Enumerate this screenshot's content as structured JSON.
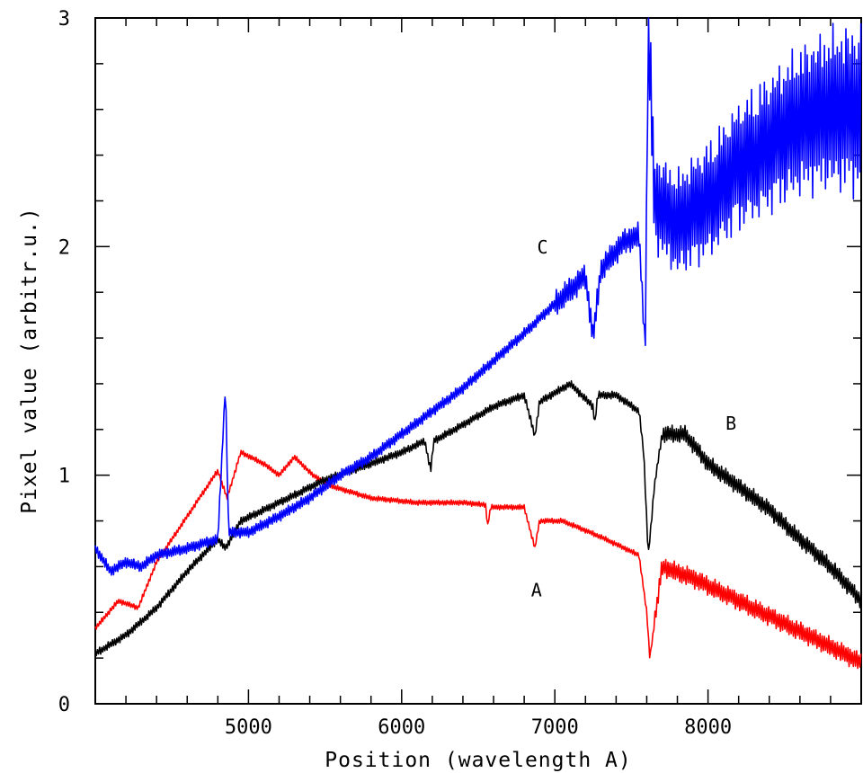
{
  "chart_data": {
    "type": "line",
    "title": "",
    "xlabel": "Position (wavelength A)",
    "ylabel": "Pixel value (arbitr.u.)",
    "xlim": [
      4000,
      9000
    ],
    "ylim": [
      0,
      3
    ],
    "x_tick_labels": [
      "5000",
      "6000",
      "7000",
      "8000"
    ],
    "y_tick_labels": [
      "0",
      "1",
      "2",
      "3"
    ],
    "grid": false,
    "series": [
      {
        "name": "A",
        "color": "#ff0000",
        "points": [
          [
            4000,
            0.33
          ],
          [
            4150,
            0.45
          ],
          [
            4280,
            0.42
          ],
          [
            4400,
            0.62
          ],
          [
            4600,
            0.82
          ],
          [
            4800,
            1.02
          ],
          [
            4860,
            0.9
          ],
          [
            4950,
            1.1
          ],
          [
            5100,
            1.05
          ],
          [
            5200,
            1.0
          ],
          [
            5300,
            1.08
          ],
          [
            5420,
            1.0
          ],
          [
            5550,
            0.95
          ],
          [
            5800,
            0.9
          ],
          [
            6100,
            0.88
          ],
          [
            6400,
            0.88
          ],
          [
            6550,
            0.87
          ],
          [
            6560,
            0.77
          ],
          [
            6580,
            0.86
          ],
          [
            6800,
            0.86
          ],
          [
            6870,
            0.68
          ],
          [
            6900,
            0.8
          ],
          [
            7050,
            0.8
          ],
          [
            7300,
            0.73
          ],
          [
            7550,
            0.65
          ],
          [
            7600,
            0.4
          ],
          [
            7620,
            0.2
          ],
          [
            7700,
            0.6
          ],
          [
            7900,
            0.55
          ],
          [
            8200,
            0.45
          ],
          [
            8500,
            0.35
          ],
          [
            8800,
            0.25
          ],
          [
            9000,
            0.18
          ]
        ]
      },
      {
        "name": "B",
        "color": "#000000",
        "points": [
          [
            4000,
            0.22
          ],
          [
            4200,
            0.3
          ],
          [
            4400,
            0.42
          ],
          [
            4600,
            0.58
          ],
          [
            4800,
            0.72
          ],
          [
            4850,
            0.68
          ],
          [
            4950,
            0.8
          ],
          [
            5200,
            0.88
          ],
          [
            5500,
            0.98
          ],
          [
            5800,
            1.05
          ],
          [
            6000,
            1.1
          ],
          [
            6150,
            1.15
          ],
          [
            6190,
            1.02
          ],
          [
            6210,
            1.15
          ],
          [
            6400,
            1.22
          ],
          [
            6600,
            1.3
          ],
          [
            6800,
            1.35
          ],
          [
            6870,
            1.17
          ],
          [
            6900,
            1.32
          ],
          [
            7100,
            1.4
          ],
          [
            7250,
            1.3
          ],
          [
            7260,
            1.22
          ],
          [
            7280,
            1.35
          ],
          [
            7400,
            1.35
          ],
          [
            7550,
            1.28
          ],
          [
            7580,
            1.1
          ],
          [
            7610,
            0.65
          ],
          [
            7650,
            0.95
          ],
          [
            7700,
            1.18
          ],
          [
            7850,
            1.18
          ],
          [
            8000,
            1.05
          ],
          [
            8200,
            0.95
          ],
          [
            8400,
            0.85
          ],
          [
            8600,
            0.72
          ],
          [
            8800,
            0.6
          ],
          [
            9000,
            0.45
          ]
        ]
      },
      {
        "name": "C",
        "color": "#0000ff",
        "points": [
          [
            4000,
            0.68
          ],
          [
            4100,
            0.58
          ],
          [
            4200,
            0.62
          ],
          [
            4300,
            0.6
          ],
          [
            4400,
            0.65
          ],
          [
            4600,
            0.68
          ],
          [
            4800,
            0.72
          ],
          [
            4850,
            1.4
          ],
          [
            4870,
            0.75
          ],
          [
            5000,
            0.75
          ],
          [
            5200,
            0.82
          ],
          [
            5400,
            0.9
          ],
          [
            5600,
            1.0
          ],
          [
            5800,
            1.08
          ],
          [
            6000,
            1.18
          ],
          [
            6200,
            1.28
          ],
          [
            6400,
            1.38
          ],
          [
            6600,
            1.5
          ],
          [
            6800,
            1.62
          ],
          [
            7000,
            1.75
          ],
          [
            7200,
            1.87
          ],
          [
            7250,
            1.6
          ],
          [
            7300,
            1.9
          ],
          [
            7450,
            2.02
          ],
          [
            7550,
            2.05
          ],
          [
            7590,
            1.55
          ],
          [
            7610,
            3.0
          ],
          [
            7650,
            2.2
          ],
          [
            7800,
            2.1
          ],
          [
            8000,
            2.2
          ],
          [
            8200,
            2.35
          ],
          [
            8400,
            2.45
          ],
          [
            8600,
            2.55
          ],
          [
            8800,
            2.6
          ],
          [
            9000,
            2.6
          ]
        ]
      }
    ]
  }
}
